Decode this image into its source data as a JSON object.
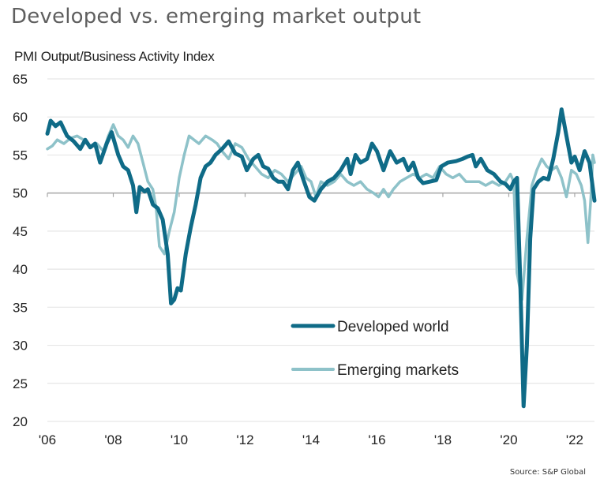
{
  "chart_data": {
    "type": "line",
    "title": "Developed vs. emerging market output",
    "ylabel": "PMI Output/Business Activity Index",
    "xlabel": "",
    "source": "Source: S&P Global",
    "ylim": [
      20,
      65
    ],
    "xlim": [
      2006.0,
      2022.6
    ],
    "yticks": [
      65,
      60,
      55,
      50,
      45,
      40,
      35,
      30,
      25,
      20
    ],
    "xticks": [
      {
        "value": 2006,
        "label": "'06"
      },
      {
        "value": 2008,
        "label": "'08"
      },
      {
        "value": 2010,
        "label": "'10"
      },
      {
        "value": 2012,
        "label": "'12"
      },
      {
        "value": 2014,
        "label": "'14"
      },
      {
        "value": 2016,
        "label": "'16"
      },
      {
        "value": 2018,
        "label": "'18"
      },
      {
        "value": 2020,
        "label": "'20"
      },
      {
        "value": 2022,
        "label": "'22"
      }
    ],
    "reference_line": 50,
    "grid": true,
    "legend_placement": "bottom-center",
    "series": [
      {
        "name": "Developed world",
        "color": "#0f6b87",
        "points": [
          [
            2006.0,
            57.8
          ],
          [
            2006.1,
            59.5
          ],
          [
            2006.25,
            58.8
          ],
          [
            2006.4,
            59.3
          ],
          [
            2006.6,
            57.5
          ],
          [
            2006.8,
            56.8
          ],
          [
            2007.0,
            55.8
          ],
          [
            2007.15,
            57.0
          ],
          [
            2007.3,
            56.0
          ],
          [
            2007.45,
            56.5
          ],
          [
            2007.6,
            54.0
          ],
          [
            2007.8,
            56.5
          ],
          [
            2007.95,
            58.0
          ],
          [
            2008.15,
            55.0
          ],
          [
            2008.3,
            53.5
          ],
          [
            2008.45,
            53.0
          ],
          [
            2008.6,
            51.0
          ],
          [
            2008.7,
            47.5
          ],
          [
            2008.8,
            50.8
          ],
          [
            2008.95,
            50.2
          ],
          [
            2009.05,
            50.5
          ],
          [
            2009.2,
            48.5
          ],
          [
            2009.35,
            48.0
          ],
          [
            2009.5,
            46.5
          ],
          [
            2009.65,
            42.0
          ],
          [
            2009.75,
            35.5
          ],
          [
            2009.85,
            36.0
          ],
          [
            2009.95,
            37.5
          ],
          [
            2010.05,
            37.2
          ],
          [
            2010.2,
            42.0
          ],
          [
            2010.35,
            45.5
          ],
          [
            2010.5,
            48.5
          ],
          [
            2010.65,
            52.0
          ],
          [
            2010.8,
            53.5
          ],
          [
            2010.95,
            54.0
          ],
          [
            2011.1,
            55.0
          ],
          [
            2011.3,
            55.8
          ],
          [
            2011.5,
            56.8
          ],
          [
            2011.7,
            55.2
          ],
          [
            2011.9,
            54.8
          ],
          [
            2012.05,
            53.0
          ],
          [
            2012.25,
            54.5
          ],
          [
            2012.4,
            55.0
          ],
          [
            2012.55,
            53.5
          ],
          [
            2012.7,
            53.2
          ],
          [
            2012.85,
            52.0
          ],
          [
            2013.0,
            51.5
          ],
          [
            2013.15,
            51.5
          ],
          [
            2013.3,
            50.5
          ],
          [
            2013.45,
            53.0
          ],
          [
            2013.6,
            54.0
          ],
          [
            2013.75,
            52.0
          ],
          [
            2013.95,
            49.5
          ],
          [
            2014.1,
            49.0
          ],
          [
            2014.3,
            50.5
          ],
          [
            2014.5,
            51.5
          ],
          [
            2014.7,
            52.0
          ],
          [
            2014.9,
            53.0
          ],
          [
            2015.1,
            54.5
          ],
          [
            2015.2,
            52.5
          ],
          [
            2015.35,
            55.0
          ],
          [
            2015.5,
            54.0
          ],
          [
            2015.7,
            54.5
          ],
          [
            2015.85,
            56.5
          ],
          [
            2016.0,
            55.5
          ],
          [
            2016.2,
            53.0
          ],
          [
            2016.4,
            55.5
          ],
          [
            2016.6,
            54.0
          ],
          [
            2016.8,
            54.5
          ],
          [
            2016.95,
            53.0
          ],
          [
            2017.1,
            54.0
          ],
          [
            2017.25,
            52.0
          ],
          [
            2017.4,
            51.3
          ],
          [
            2017.6,
            51.5
          ],
          [
            2017.8,
            51.7
          ],
          [
            2017.95,
            53.5
          ],
          [
            2018.15,
            54.0
          ],
          [
            2018.4,
            54.2
          ],
          [
            2018.6,
            54.5
          ],
          [
            2018.75,
            54.8
          ],
          [
            2018.9,
            55.0
          ],
          [
            2019.0,
            53.5
          ],
          [
            2019.15,
            54.5
          ],
          [
            2019.35,
            53.0
          ],
          [
            2019.55,
            52.5
          ],
          [
            2019.75,
            51.5
          ],
          [
            2019.9,
            51.2
          ],
          [
            2020.05,
            50.5
          ],
          [
            2020.15,
            51.5
          ],
          [
            2020.25,
            52.0
          ],
          [
            2020.35,
            38.0
          ],
          [
            2020.45,
            22.0
          ],
          [
            2020.55,
            30.0
          ],
          [
            2020.65,
            44.0
          ],
          [
            2020.75,
            50.5
          ],
          [
            2020.9,
            51.5
          ],
          [
            2021.05,
            52.0
          ],
          [
            2021.2,
            51.8
          ],
          [
            2021.35,
            54.5
          ],
          [
            2021.5,
            58.0
          ],
          [
            2021.6,
            61.0
          ],
          [
            2021.75,
            57.5
          ],
          [
            2021.9,
            54.0
          ],
          [
            2022.0,
            54.8
          ],
          [
            2022.15,
            53.0
          ],
          [
            2022.3,
            55.5
          ],
          [
            2022.45,
            54.0
          ],
          [
            2022.6,
            49.0
          ]
        ]
      },
      {
        "name": "Emerging markets",
        "color": "#8ec2c9",
        "points": [
          [
            2006.0,
            55.8
          ],
          [
            2006.15,
            56.2
          ],
          [
            2006.3,
            57.0
          ],
          [
            2006.5,
            56.5
          ],
          [
            2006.7,
            57.2
          ],
          [
            2006.9,
            57.5
          ],
          [
            2007.1,
            57.0
          ],
          [
            2007.3,
            56.0
          ],
          [
            2007.5,
            56.5
          ],
          [
            2007.7,
            55.5
          ],
          [
            2007.85,
            57.5
          ],
          [
            2008.0,
            59.0
          ],
          [
            2008.15,
            57.5
          ],
          [
            2008.3,
            57.0
          ],
          [
            2008.45,
            56.0
          ],
          [
            2008.6,
            57.5
          ],
          [
            2008.75,
            56.5
          ],
          [
            2008.9,
            54.0
          ],
          [
            2009.05,
            51.5
          ],
          [
            2009.2,
            50.5
          ],
          [
            2009.3,
            48.0
          ],
          [
            2009.4,
            43.0
          ],
          [
            2009.55,
            42.0
          ],
          [
            2009.7,
            45.0
          ],
          [
            2009.85,
            47.5
          ],
          [
            2010.0,
            52.0
          ],
          [
            2010.15,
            55.0
          ],
          [
            2010.3,
            57.5
          ],
          [
            2010.45,
            57.0
          ],
          [
            2010.6,
            56.5
          ],
          [
            2010.8,
            57.5
          ],
          [
            2011.0,
            57.0
          ],
          [
            2011.15,
            56.5
          ],
          [
            2011.3,
            55.5
          ],
          [
            2011.5,
            54.5
          ],
          [
            2011.7,
            56.5
          ],
          [
            2011.9,
            56.0
          ],
          [
            2012.1,
            54.5
          ],
          [
            2012.3,
            53.5
          ],
          [
            2012.5,
            52.5
          ],
          [
            2012.7,
            52.0
          ],
          [
            2012.9,
            53.0
          ],
          [
            2013.1,
            52.5
          ],
          [
            2013.3,
            51.5
          ],
          [
            2013.5,
            52.5
          ],
          [
            2013.7,
            53.5
          ],
          [
            2013.85,
            52.0
          ],
          [
            2014.0,
            51.5
          ],
          [
            2014.15,
            49.5
          ],
          [
            2014.3,
            51.5
          ],
          [
            2014.5,
            51.0
          ],
          [
            2014.7,
            51.5
          ],
          [
            2014.9,
            52.5
          ],
          [
            2015.1,
            51.5
          ],
          [
            2015.3,
            51.0
          ],
          [
            2015.5,
            51.5
          ],
          [
            2015.7,
            50.5
          ],
          [
            2015.9,
            50.0
          ],
          [
            2016.05,
            49.5
          ],
          [
            2016.2,
            50.5
          ],
          [
            2016.35,
            49.5
          ],
          [
            2016.5,
            50.5
          ],
          [
            2016.7,
            51.5
          ],
          [
            2016.9,
            52.0
          ],
          [
            2017.1,
            52.5
          ],
          [
            2017.3,
            52.0
          ],
          [
            2017.5,
            52.5
          ],
          [
            2017.7,
            52.0
          ],
          [
            2017.9,
            53.5
          ],
          [
            2018.1,
            52.5
          ],
          [
            2018.3,
            52.0
          ],
          [
            2018.5,
            52.5
          ],
          [
            2018.7,
            51.5
          ],
          [
            2018.9,
            51.5
          ],
          [
            2019.1,
            51.5
          ],
          [
            2019.3,
            51.0
          ],
          [
            2019.5,
            51.5
          ],
          [
            2019.7,
            51.0
          ],
          [
            2019.9,
            51.5
          ],
          [
            2020.05,
            52.5
          ],
          [
            2020.15,
            51.5
          ],
          [
            2020.25,
            39.5
          ],
          [
            2020.4,
            36.0
          ],
          [
            2020.55,
            44.0
          ],
          [
            2020.7,
            51.0
          ],
          [
            2020.85,
            53.0
          ],
          [
            2021.0,
            54.5
          ],
          [
            2021.15,
            53.5
          ],
          [
            2021.3,
            53.0
          ],
          [
            2021.45,
            53.5
          ],
          [
            2021.6,
            52.0
          ],
          [
            2021.75,
            49.5
          ],
          [
            2021.9,
            53.0
          ],
          [
            2022.05,
            52.5
          ],
          [
            2022.2,
            51.0
          ],
          [
            2022.3,
            49.0
          ],
          [
            2022.4,
            43.5
          ],
          [
            2022.5,
            50.0
          ],
          [
            2022.55,
            55.0
          ],
          [
            2022.6,
            54.0
          ]
        ]
      }
    ]
  }
}
